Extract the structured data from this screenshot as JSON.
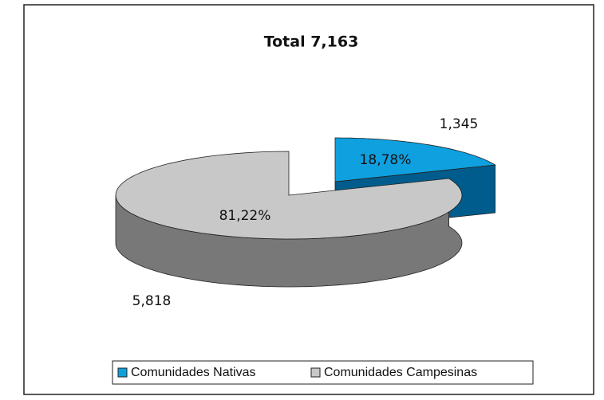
{
  "chart_data": {
    "type": "pie3d",
    "title": "Total 7,163",
    "categories": [
      "Comunidades Nativas",
      "Comunidades Campesinas"
    ],
    "values": [
      1345,
      5818
    ],
    "value_labels": [
      "1,345",
      "5,818"
    ],
    "percentages": [
      18.78,
      81.22
    ],
    "percentage_labels": [
      "18,78%",
      "81,22%"
    ],
    "colors": [
      "#0fa0e0",
      "#c8c8c8"
    ],
    "side_colors": [
      "#005c8c",
      "#787878"
    ],
    "legend": "bottom"
  }
}
